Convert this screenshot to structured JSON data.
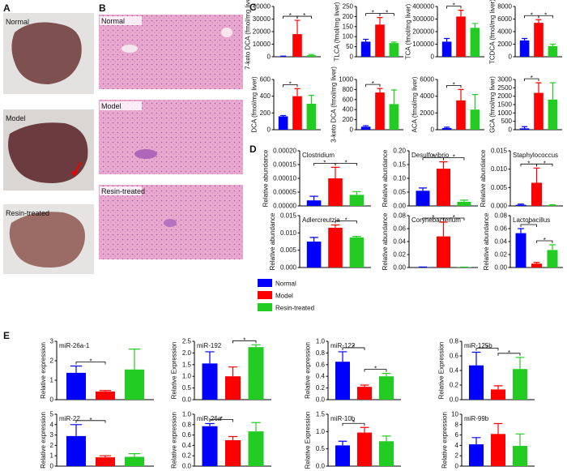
{
  "panels": [
    "A",
    "B",
    "C",
    "D",
    "E"
  ],
  "photos": [
    "Normal",
    "Model",
    "Resin-treated"
  ],
  "histology": [
    "Normal",
    "Model",
    "Resin-treated"
  ],
  "legend": {
    "names": [
      "Normal",
      "Model",
      "Resin-treated"
    ],
    "colors": [
      "#0000ff",
      "#ff0000",
      "#22cc22"
    ]
  },
  "chart_data": [
    {
      "type": "bar",
      "ylabel": "7-keto DCA (fmol/mg liver)",
      "values": [
        300,
        18000,
        1200
      ],
      "errors": [
        200,
        11000,
        600
      ],
      "ylim": [
        0,
        40000
      ],
      "yticks": [
        0,
        10000,
        20000,
        30000,
        40000
      ],
      "significance": [
        {
          "text": "*",
          "between": [
            0,
            1
          ]
        },
        {
          "text": "*",
          "between": [
            1,
            2
          ]
        }
      ]
    },
    {
      "type": "bar",
      "ylabel": "TLCA (fmol/mg liver)",
      "values": [
        75,
        160,
        68
      ],
      "errors": [
        12,
        35,
        5
      ],
      "ylim": [
        0,
        250
      ],
      "yticks": [
        0,
        50,
        100,
        150,
        200,
        250
      ],
      "significance": [
        {
          "text": "*",
          "between": [
            0,
            1
          ]
        },
        {
          "text": "*",
          "between": [
            1,
            2
          ]
        }
      ]
    },
    {
      "type": "bar",
      "ylabel": "TCA (fmol/mg liver)",
      "values": [
        120000,
        320000,
        230000
      ],
      "errors": [
        25000,
        50000,
        35000
      ],
      "ylim": [
        0,
        400000
      ],
      "yticks": [
        0,
        100000,
        200000,
        300000,
        400000
      ],
      "significance": [
        {
          "text": "*",
          "between": [
            0,
            1
          ]
        }
      ]
    },
    {
      "type": "bar",
      "ylabel": "TCDCA (fmol/mg liver)",
      "values": [
        2600,
        5400,
        1700
      ],
      "errors": [
        300,
        500,
        300
      ],
      "ylim": [
        0,
        8000
      ],
      "yticks": [
        0,
        2000,
        4000,
        6000,
        8000
      ],
      "significance": [
        {
          "text": "*",
          "between": [
            0,
            1
          ]
        },
        {
          "text": "*",
          "between": [
            1,
            2
          ]
        }
      ]
    },
    {
      "type": "bar",
      "ylabel": "DCA (fmol/mg liver)",
      "values": [
        160,
        400,
        310
      ],
      "errors": [
        10,
        90,
        100
      ],
      "ylim": [
        0,
        600
      ],
      "yticks": [
        0,
        200,
        400,
        600
      ],
      "significance": [
        {
          "text": "*",
          "between": [
            0,
            1
          ]
        }
      ]
    },
    {
      "type": "bar",
      "ylabel": "3-keto DCA (fmol/mg liver)",
      "values": [
        60,
        740,
        510
      ],
      "errors": [
        20,
        80,
        280
      ],
      "ylim": [
        0,
        1000
      ],
      "yticks": [
        0,
        200,
        400,
        600,
        800,
        1000
      ],
      "significance": [
        {
          "text": "*",
          "between": [
            0,
            1
          ]
        }
      ]
    },
    {
      "type": "bar",
      "ylabel": "ACA (fmol/mg liver)",
      "values": [
        200,
        3500,
        2400
      ],
      "errors": [
        100,
        1300,
        1800
      ],
      "ylim": [
        0,
        6000
      ],
      "yticks": [
        0,
        2000,
        4000,
        6000
      ],
      "significance": [
        {
          "text": "*",
          "between": [
            0,
            1
          ]
        }
      ]
    },
    {
      "type": "bar",
      "ylabel": "GCA (fmol/mg liver)",
      "values": [
        80,
        2200,
        1800
      ],
      "errors": [
        100,
        600,
        1000
      ],
      "ylim": [
        0,
        3000
      ],
      "yticks": [
        0,
        500,
        1000,
        1500,
        2000,
        2500,
        3000
      ],
      "significance": [
        {
          "text": "*",
          "between": [
            0,
            1
          ]
        }
      ]
    },
    {
      "type": "bar",
      "title": "Clostridium",
      "ylabel": "Relative abundance",
      "values": [
        2e-05,
        0.0001,
        4e-05
      ],
      "errors": [
        1.5e-05,
        4e-05,
        1.2e-05
      ],
      "ylim": [
        0,
        0.0002
      ],
      "yticks": [
        {
          "value": 0,
          "label": "0.00000"
        },
        {
          "value": 5e-05,
          "label": "0.00005"
        },
        {
          "value": 0.0001,
          "label": "0.00010"
        },
        {
          "value": 0.00015,
          "label": "0.00015"
        },
        {
          "value": 0.0002,
          "label": "0.00020"
        }
      ],
      "significance": [
        {
          "text": "*",
          "between": [
            0,
            1
          ]
        },
        {
          "text": "*",
          "between": [
            1,
            2
          ]
        }
      ]
    },
    {
      "type": "bar",
      "title": "Desulfovibrio",
      "ylabel": "Relative abundance",
      "values": [
        0.055,
        0.135,
        0.015
      ],
      "errors": [
        0.01,
        0.025,
        0.006
      ],
      "ylim": [
        0,
        0.2
      ],
      "yticks": [
        {
          "value": 0,
          "label": "0.00"
        },
        {
          "value": 0.05,
          "label": "0.05"
        },
        {
          "value": 0.1,
          "label": "0.10"
        },
        {
          "value": 0.15,
          "label": "0.15"
        },
        {
          "value": 0.2,
          "label": "0.20"
        }
      ],
      "significance": [
        {
          "text": "*",
          "between": [
            0,
            1
          ]
        },
        {
          "text": "*",
          "between": [
            1,
            2
          ]
        }
      ]
    },
    {
      "type": "bar",
      "title": "Staphylococcus",
      "ylabel": "Relative abundance",
      "values": [
        0.0003,
        0.0063,
        0.0002
      ],
      "errors": [
        0.0002,
        0.004,
        0.0001
      ],
      "ylim": [
        0,
        0.015
      ],
      "yticks": [
        {
          "value": 0,
          "label": "0.000"
        },
        {
          "value": 0.005,
          "label": "0.005"
        },
        {
          "value": 0.01,
          "label": "0.010"
        },
        {
          "value": 0.015,
          "label": "0.015"
        }
      ],
      "significance": [
        {
          "text": "*",
          "between": [
            0,
            1
          ]
        },
        {
          "text": "*",
          "between": [
            1,
            2
          ]
        }
      ]
    },
    {
      "type": "bar",
      "title": "Adlercreutzia",
      "ylabel": "Relative abundance",
      "values": [
        0.0075,
        0.0115,
        0.0087
      ],
      "errors": [
        0.0012,
        0.0008,
        0.0003
      ],
      "ylim": [
        0,
        0.015
      ],
      "yticks": [
        {
          "value": 0,
          "label": "0.000"
        },
        {
          "value": 0.005,
          "label": "0.005"
        },
        {
          "value": 0.01,
          "label": "0.010"
        },
        {
          "value": 0.015,
          "label": "0.015"
        }
      ],
      "significance": [
        {
          "text": "*",
          "between": [
            1,
            2
          ]
        }
      ]
    },
    {
      "type": "bar",
      "title": "Corynebacterium",
      "ylabel": "Relative abundance",
      "values": [
        0.0005,
        0.048,
        0.0005
      ],
      "errors": [
        0.0003,
        0.022,
        0.0002
      ],
      "ylim": [
        0,
        0.08
      ],
      "yticks": [
        {
          "value": 0,
          "label": "0.00"
        },
        {
          "value": 0.02,
          "label": "0.02"
        },
        {
          "value": 0.04,
          "label": "0.04"
        },
        {
          "value": 0.06,
          "label": "0.06"
        },
        {
          "value": 0.08,
          "label": "0.08"
        }
      ],
      "significance": [
        {
          "text": "*",
          "between": [
            0,
            1
          ]
        },
        {
          "text": "*",
          "between": [
            1,
            2
          ]
        }
      ]
    },
    {
      "type": "bar",
      "title": "Lactobacillus",
      "ylabel": "Relative abundance",
      "values": [
        0.053,
        0.006,
        0.027
      ],
      "errors": [
        0.007,
        0.002,
        0.008
      ],
      "ylim": [
        0,
        0.08
      ],
      "yticks": [
        {
          "value": 0,
          "label": "0.00"
        },
        {
          "value": 0.02,
          "label": "0.02"
        },
        {
          "value": 0.04,
          "label": "0.04"
        },
        {
          "value": 0.06,
          "label": "0.06"
        },
        {
          "value": 0.08,
          "label": "0.08"
        }
      ],
      "significance": [
        {
          "text": "*",
          "between": [
            0,
            1
          ]
        },
        {
          "text": "*",
          "between": [
            1,
            2
          ]
        }
      ]
    },
    {
      "type": "bar",
      "title": "miR-26a-1",
      "ylabel": "Relative expression",
      "values": [
        1.38,
        0.42,
        1.55
      ],
      "errors": [
        0.35,
        0.05,
        1.05
      ],
      "ylim": [
        0,
        3
      ],
      "yticks": [
        0,
        1,
        2,
        3
      ],
      "significance": [
        {
          "text": "*",
          "between": [
            0,
            1
          ]
        }
      ]
    },
    {
      "type": "bar",
      "title": "miR-192",
      "ylabel": "Relative Expression",
      "values": [
        1.55,
        1.0,
        2.25
      ],
      "errors": [
        0.5,
        0.4,
        0.1
      ],
      "ylim": [
        0,
        2.5
      ],
      "yticks": [
        {
          "value": 0,
          "label": "0.0"
        },
        0.5,
        {
          "value": 1,
          "label": "1.0"
        },
        1.5,
        {
          "value": 2,
          "label": "2.0"
        },
        2.5
      ],
      "significance": [
        {
          "text": "*",
          "between": [
            1,
            2
          ]
        }
      ]
    },
    {
      "type": "bar",
      "title": "miR-122",
      "ylabel": "Relative expression",
      "values": [
        0.65,
        0.22,
        0.4
      ],
      "errors": [
        0.17,
        0.03,
        0.05
      ],
      "ylim": [
        0,
        1
      ],
      "yticks": [
        {
          "value": 0,
          "label": "0.0"
        },
        0.2,
        0.4,
        0.6,
        0.8,
        {
          "value": 1,
          "label": "1.0"
        }
      ],
      "significance": [
        {
          "text": "*",
          "between": [
            0,
            1
          ]
        },
        {
          "text": "*",
          "between": [
            1,
            2
          ]
        }
      ]
    },
    {
      "type": "bar",
      "title": "miR-125b",
      "ylabel": "Relative Expression",
      "values": [
        0.47,
        0.14,
        0.42
      ],
      "errors": [
        0.18,
        0.05,
        0.16
      ],
      "ylim": [
        0,
        0.8
      ],
      "yticks": [
        {
          "value": 0,
          "label": "0.0"
        },
        0.2,
        0.4,
        0.6,
        0.8
      ],
      "significance": [
        {
          "text": "*",
          "between": [
            0,
            1
          ]
        },
        {
          "text": "*",
          "between": [
            1,
            2
          ]
        }
      ]
    },
    {
      "type": "bar",
      "title": "miR-22",
      "ylabel": "Relative expression",
      "values": [
        2.9,
        0.85,
        0.9
      ],
      "errors": [
        1.1,
        0.15,
        0.3
      ],
      "ylim": [
        0,
        5
      ],
      "yticks": [
        0,
        1,
        2,
        3,
        4,
        5
      ],
      "significance": [
        {
          "text": "*",
          "between": [
            0,
            1
          ]
        }
      ]
    },
    {
      "type": "bar",
      "title": "miR-26a",
      "ylabel": "Relative expression",
      "values": [
        0.77,
        0.5,
        0.67
      ],
      "errors": [
        0.05,
        0.07,
        0.17
      ],
      "ylim": [
        0,
        1
      ],
      "yticks": [
        {
          "value": 0,
          "label": "0.0"
        },
        0.2,
        0.4,
        0.6,
        0.8,
        {
          "value": 1,
          "label": "1.0"
        }
      ],
      "significance": [
        {
          "text": "*",
          "between": [
            0,
            1
          ]
        }
      ]
    },
    {
      "type": "bar",
      "title": "miR-10b",
      "ylabel": "Relative Expression",
      "values": [
        0.6,
        0.97,
        0.72
      ],
      "errors": [
        0.12,
        0.15,
        0.15
      ],
      "ylim": [
        0,
        1.5
      ],
      "yticks": [
        {
          "value": 0,
          "label": "0.0"
        },
        0.5,
        {
          "value": 1,
          "label": "1.0"
        },
        1.5
      ],
      "significance": [
        {
          "text": "*",
          "between": [
            0,
            1
          ]
        }
      ]
    },
    {
      "type": "bar",
      "title": "miR-99b",
      "ylabel": "Relative expression",
      "values": [
        4.2,
        6.2,
        3.9
      ],
      "errors": [
        1.3,
        2,
        2.3
      ],
      "ylim": [
        0,
        10
      ],
      "yticks": [
        0,
        2,
        4,
        6,
        8,
        10
      ],
      "significance": []
    }
  ]
}
